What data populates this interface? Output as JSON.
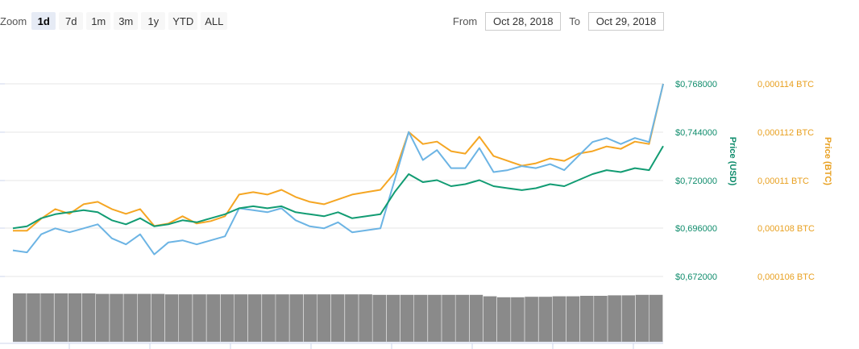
{
  "toolbar": {
    "zoom_label": "Zoom",
    "zoom_buttons": [
      "1d",
      "7d",
      "1m",
      "3m",
      "1y",
      "YTD",
      "ALL"
    ],
    "active_zoom": "1d",
    "from_label": "From",
    "from_value": "Oct 28, 2018",
    "to_label": "To",
    "to_value": "Oct 29, 2018"
  },
  "chart_data": {
    "type": "line",
    "x_range": [
      "Oct 28, 2018",
      "Oct 29, 2018"
    ],
    "grid": true,
    "legend": "none",
    "axes": {
      "usd": {
        "title": "Price (USD)",
        "ticks": [
          "$0,672000",
          "$0,696000",
          "$0,720000",
          "$0,744000",
          "$0,768000"
        ],
        "range": [
          0.672,
          0.768
        ],
        "color": "#0f8c6c"
      },
      "btc": {
        "title": "Price (BTC)",
        "ticks": [
          "0,000106 BTC",
          "0,000108 BTC",
          "0,00011 BTC",
          "0,000112 BTC",
          "0,000114 BTC"
        ],
        "range": [
          0.000106,
          0.000114
        ],
        "color": "#e8a020"
      }
    },
    "series": [
      {
        "axis": "btc",
        "color": "#f5a623",
        "values": [
          0.0001079,
          0.0001079,
          0.0001084,
          0.0001088,
          0.0001086,
          0.000109,
          0.0001091,
          0.0001088,
          0.0001086,
          0.0001088,
          0.0001081,
          0.0001082,
          0.0001085,
          0.0001082,
          0.0001083,
          0.0001085,
          0.0001094,
          0.0001095,
          0.0001094,
          0.0001096,
          0.0001093,
          0.0001091,
          0.000109,
          0.0001092,
          0.0001094,
          0.0001095,
          0.0001096,
          0.0001103,
          0.000112,
          0.0001115,
          0.0001116,
          0.0001112,
          0.0001111,
          0.0001118,
          0.000111,
          0.0001108,
          0.0001106,
          0.0001107,
          0.0001109,
          0.0001108,
          0.0001111,
          0.0001112,
          0.0001114,
          0.0001113,
          0.0001116,
          0.0001115,
          0.000114
        ]
      },
      {
        "axis": "usd",
        "color": "#6cb4e4",
        "values": [
          0.685,
          0.684,
          0.693,
          0.696,
          0.694,
          0.696,
          0.698,
          0.691,
          0.688,
          0.693,
          0.683,
          0.689,
          0.69,
          0.688,
          0.69,
          0.692,
          0.706,
          0.705,
          0.704,
          0.706,
          0.7,
          0.697,
          0.696,
          0.699,
          0.694,
          0.695,
          0.696,
          0.72,
          0.744,
          0.73,
          0.735,
          0.726,
          0.726,
          0.736,
          0.724,
          0.725,
          0.727,
          0.726,
          0.728,
          0.725,
          0.732,
          0.739,
          0.741,
          0.738,
          0.741,
          0.739,
          0.768
        ]
      },
      {
        "axis": "usd",
        "color": "#129c73",
        "values": [
          0.696,
          0.697,
          0.701,
          0.703,
          0.704,
          0.705,
          0.704,
          0.7,
          0.698,
          0.701,
          0.697,
          0.698,
          0.7,
          0.699,
          0.701,
          0.703,
          0.706,
          0.707,
          0.706,
          0.707,
          0.704,
          0.703,
          0.702,
          0.704,
          0.701,
          0.702,
          0.703,
          0.714,
          0.723,
          0.719,
          0.72,
          0.717,
          0.718,
          0.72,
          0.717,
          0.716,
          0.715,
          0.716,
          0.718,
          0.717,
          0.72,
          0.723,
          0.725,
          0.724,
          0.726,
          0.725,
          0.737
        ]
      }
    ],
    "volume": [
      1.0,
      1.0,
      1.0,
      1.0,
      1.0,
      1.0,
      0.99,
      0.99,
      0.99,
      0.99,
      0.99,
      0.98,
      0.98,
      0.98,
      0.98,
      0.98,
      0.98,
      0.98,
      0.98,
      0.98,
      0.98,
      0.98,
      0.98,
      0.98,
      0.98,
      0.98,
      0.97,
      0.97,
      0.97,
      0.97,
      0.97,
      0.97,
      0.97,
      0.97,
      0.94,
      0.92,
      0.92,
      0.93,
      0.93,
      0.94,
      0.94,
      0.95,
      0.95,
      0.96,
      0.96,
      0.97,
      0.97
    ]
  }
}
